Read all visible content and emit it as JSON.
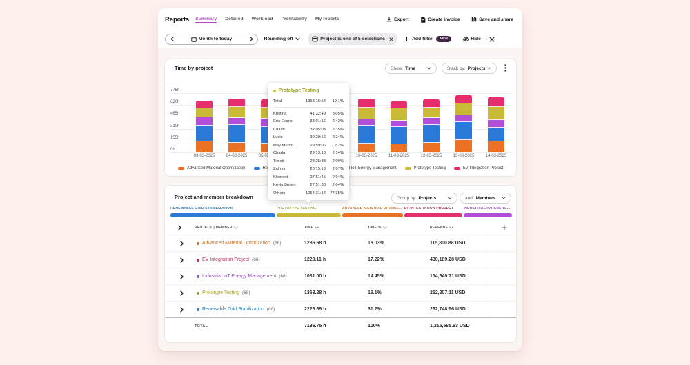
{
  "palette": {
    "page_bg": "#fdf0ed",
    "accent_purple": "#a64cb3",
    "new_badge_bg": "#3e2342",
    "bar_colors": {
      "advanced_material_optimization": "#ea7125",
      "renewable_grid_stabilization": "#2b7ad9",
      "industrial_iot_energy_management": "#b14fd9",
      "prototype_testing": "#c9b935",
      "ev_integration_project": "#e62e6f"
    },
    "text_colors": {
      "advanced_material_optimization": "#c0732c",
      "renewable_grid_stabilization": "#2e76ad",
      "industrial_iot_energy_management": "#8d4ab1",
      "prototype_testing": "#a2a12f",
      "ev_integration_project": "#b5305c"
    }
  },
  "header": {
    "title": "Reports",
    "tabs": [
      {
        "label": "Summary",
        "active": true
      },
      {
        "label": "Detailed",
        "active": false
      },
      {
        "label": "Workload",
        "active": false
      },
      {
        "label": "Profitability",
        "active": false
      },
      {
        "label": "My reports",
        "active": false
      }
    ],
    "actions": [
      {
        "label": "Export",
        "icon": "download-icon"
      },
      {
        "label": "Create invoice",
        "icon": "invoice-icon"
      },
      {
        "label": "Save and share",
        "icon": "save-icon"
      }
    ]
  },
  "filter_bar": {
    "date_range": {
      "label": "Month to today"
    },
    "rounding": {
      "label": "Rounding off"
    },
    "filter_chip": {
      "label": "Project is one of 5 selections"
    },
    "add_filter": {
      "label": "Add filter",
      "badge": "NEW"
    },
    "hide": {
      "label": "Hide"
    }
  },
  "chart_panel": {
    "title": "Time by project",
    "show_by": {
      "prefix": "Show:",
      "value": "Time"
    },
    "stack_by": {
      "prefix": "Stack by:",
      "value": "Projects"
    }
  },
  "chart_data": {
    "type": "bar",
    "stacked": true,
    "unit": "hours",
    "title": "Time by project",
    "x": [
      "03-03-2025",
      "04-03-2025",
      "05-03-2025",
      "06-03-2025",
      "07-03-2025",
      "10-03-2025",
      "11-03-2025",
      "12-03-2025",
      "13-03-2025",
      "14-03-2025"
    ],
    "y_ticks": [
      "0h",
      "155h",
      "310h",
      "465h",
      "620h",
      "775h"
    ],
    "ylim": [
      0,
      775
    ],
    "legend_position": "bottom",
    "grid": true,
    "series": [
      {
        "name": "Advanced Material Optimization",
        "color": "#ea7125",
        "values": [
          141,
          125,
          116,
          118,
          110,
          118,
          105,
          124,
          159,
          146
        ]
      },
      {
        "name": "Renewable Grid Stabilization",
        "color": "#2b7ad9",
        "values": [
          212,
          234,
          222,
          228,
          225,
          232,
          232,
          235,
          240,
          177
        ]
      },
      {
        "name": "Industrial IoT Energy Management",
        "color": "#b14fd9",
        "values": [
          103,
          96,
          106,
          100,
          102,
          82,
          77,
          88,
          87,
          101
        ]
      },
      {
        "name": "Prototype Testing",
        "color": "#c9b935",
        "values": [
          122,
          140,
          138,
          144,
          150,
          150,
          164,
          142,
          152,
          172
        ]
      },
      {
        "name": "EV Integration Project",
        "color": "#e62e6f",
        "values": [
          99,
          111,
          115,
          110,
          112,
          123,
          93,
          104,
          109,
          123
        ]
      }
    ]
  },
  "tooltip": {
    "title": "Prototype Testing",
    "color": "#a2a12f",
    "dot_color": "#c9b935",
    "total": {
      "name": "Total",
      "duration": "1363:16:54",
      "percent": "19.1%"
    },
    "rows": [
      {
        "name": "Kristina",
        "duration": "41:32:49",
        "percent": "3.05%"
      },
      {
        "name": "Eric Evans",
        "duration": "33:01:16",
        "percent": "2.42%"
      },
      {
        "name": "Chaim",
        "duration": "32:05:03",
        "percent": "2.35%"
      },
      {
        "name": "Lucie",
        "duration": "30:29:56",
        "percent": "2.24%"
      },
      {
        "name": "May Munro",
        "duration": "29:59:06",
        "percent": "2.2%"
      },
      {
        "name": "Charla",
        "duration": "29:13:16",
        "percent": "2.14%"
      },
      {
        "name": "Timoti",
        "duration": "28:25:38",
        "percent": "2.09%"
      },
      {
        "name": "Zalmon",
        "duration": "28:15:13",
        "percent": "2.07%"
      },
      {
        "name": "Klement",
        "duration": "27:51:45",
        "percent": "2.04%"
      },
      {
        "name": "Kevin Brown",
        "duration": "27:51:38",
        "percent": "2.04%"
      },
      {
        "name": "Others",
        "duration": "1054:31:14",
        "percent": "77.35%"
      }
    ]
  },
  "breakdown": {
    "title": "Project and member breakdown",
    "group_by": {
      "prefix": "Group by:",
      "value": "Projects"
    },
    "and_by": {
      "prefix": "and:",
      "value": "Members"
    },
    "distribution": [
      {
        "label": "RENEWABLE GRID STABILIZATION",
        "percent": 31.2,
        "bar_color": "#2b7ad9",
        "text_color": "#2e76ad"
      },
      {
        "label": "PROTOTYPE TESTING",
        "percent": 19.1,
        "bar_color": "#c9b935",
        "text_color": "#a2a12f"
      },
      {
        "label": "ADVANCED MATERIAL OPTIMIZATION",
        "percent": 18.03,
        "bar_color": "#ea7125",
        "text_color": "#c0732c"
      },
      {
        "label": "EV INTEGRATION PROJECT",
        "percent": 17.22,
        "bar_color": "#e62e6f",
        "text_color": "#b5305c"
      },
      {
        "label": "INDUSTRIAL IOT ENERGY MANAGEMENT",
        "percent": 14.45,
        "bar_color": "#b14fd9",
        "text_color": "#8d4ab1"
      }
    ],
    "table": {
      "columns": [
        "PROJECT | MEMBER",
        "TIME",
        "TIME %",
        "REVENUE"
      ],
      "rows": [
        {
          "name": "Advanced Material Optimization",
          "count": "(68)",
          "time": "1286.68 h",
          "time_pct": "18.03%",
          "revenue": "115,800.88 USD",
          "color": "#c0732c"
        },
        {
          "name": "EV Integration Project",
          "count": "(68)",
          "time": "1229.11 h",
          "time_pct": "17.22%",
          "revenue": "430,189.28 USD",
          "color": "#b5305c"
        },
        {
          "name": "Industrial IoT Energy Management",
          "count": "(68)",
          "time": "1031.00 h",
          "time_pct": "14.45%",
          "revenue": "154,649.71 USD",
          "color": "#8d4ab1"
        },
        {
          "name": "Prototype Testing",
          "count": "(68)",
          "time": "1363.28 h",
          "time_pct": "19.1%",
          "revenue": "252,207.11 USD",
          "color": "#a2a12f"
        },
        {
          "name": "Renewable Grid Stabilization",
          "count": "(68)",
          "time": "2226.69 h",
          "time_pct": "31.2%",
          "revenue": "262,748.96 USD",
          "color": "#2e76ad"
        }
      ],
      "total": {
        "label": "TOTAL",
        "time": "7136.75 h",
        "time_pct": "100%",
        "revenue": "1,215,595.93 USD"
      }
    }
  }
}
